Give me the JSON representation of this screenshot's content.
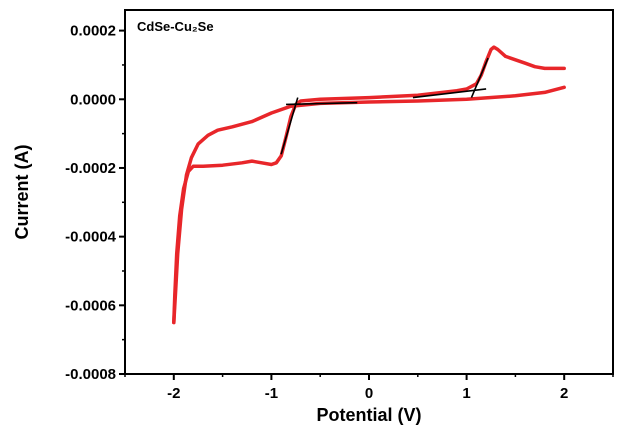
{
  "chart_data": {
    "type": "line",
    "title": "",
    "panel_label": "CdSe-Cu₂Se",
    "xlabel": "Potential (V)",
    "ylabel": "Current (A)",
    "xlim": [
      -2.5,
      2.5
    ],
    "ylim": [
      -0.0008,
      0.00026
    ],
    "x_ticks": [
      -2,
      -1,
      0,
      1,
      2
    ],
    "x_tick_labels": [
      "-2",
      "-1",
      "0",
      "1",
      "2"
    ],
    "y_ticks": [
      -0.0008,
      -0.0006,
      -0.0004,
      -0.0002,
      0.0,
      0.0002
    ],
    "y_tick_labels": [
      "-0.0008",
      "-0.0006",
      "-0.0004",
      "-0.0002",
      "0.0000",
      "0.0002"
    ],
    "grid": false,
    "series": [
      {
        "color": "#e8262a",
        "points": [
          [
            -2.0,
            -0.00065
          ],
          [
            -1.99,
            -0.00057
          ],
          [
            -1.97,
            -0.00045
          ],
          [
            -1.94,
            -0.00034
          ],
          [
            -1.9,
            -0.00026
          ],
          [
            -1.85,
            -0.00021
          ],
          [
            -1.8,
            -0.000195
          ],
          [
            -1.7,
            -0.000195
          ],
          [
            -1.5,
            -0.000192
          ],
          [
            -1.3,
            -0.000185
          ],
          [
            -1.2,
            -0.00018
          ],
          [
            -1.1,
            -0.000185
          ],
          [
            -1.0,
            -0.00019
          ],
          [
            -0.95,
            -0.000185
          ],
          [
            -0.9,
            -0.000165
          ],
          [
            -0.85,
            -0.00011
          ],
          [
            -0.8,
            -5e-05
          ],
          [
            -0.75,
            -1.5e-05
          ],
          [
            -0.7,
            -5e-06
          ],
          [
            -0.5,
            0.0
          ],
          [
            0.0,
            5e-06
          ],
          [
            0.5,
            1.2e-05
          ],
          [
            0.9,
            2.5e-05
          ],
          [
            1.0,
            3e-05
          ],
          [
            1.1,
            4.5e-05
          ],
          [
            1.15,
            7e-05
          ],
          [
            1.2,
            0.00011
          ],
          [
            1.25,
            0.000145
          ],
          [
            1.28,
            0.000152
          ],
          [
            1.32,
            0.000145
          ],
          [
            1.4,
            0.000125
          ],
          [
            1.5,
            0.000115
          ],
          [
            1.6,
            0.000105
          ],
          [
            1.7,
            9.5e-05
          ],
          [
            1.8,
            9e-05
          ],
          [
            1.9,
            9e-05
          ],
          [
            2.0,
            9e-05
          ]
        ]
      },
      {
        "color": "#e8262a",
        "points": [
          [
            2.0,
            3.5e-05
          ],
          [
            1.8,
            2e-05
          ],
          [
            1.5,
            1e-05
          ],
          [
            1.0,
            0.0
          ],
          [
            0.5,
            -5e-06
          ],
          [
            0.0,
            -8e-06
          ],
          [
            -0.5,
            -1.2e-05
          ],
          [
            -0.8,
            -2e-05
          ],
          [
            -1.0,
            -4e-05
          ],
          [
            -1.2,
            -6.5e-05
          ],
          [
            -1.4,
            -8e-05
          ],
          [
            -1.55,
            -9e-05
          ],
          [
            -1.65,
            -0.000105
          ],
          [
            -1.75,
            -0.00013
          ],
          [
            -1.82,
            -0.00017
          ],
          [
            -1.87,
            -0.00022
          ],
          [
            -1.92,
            -0.00032
          ],
          [
            -1.96,
            -0.00045
          ],
          [
            -1.98,
            -0.00055
          ],
          [
            -2.0,
            -0.00065
          ]
        ]
      }
    ],
    "annotations": [
      {
        "type": "line",
        "color": "#000000",
        "points": [
          [
            -0.85,
            -1.5e-05
          ],
          [
            -0.12,
            -1e-05
          ]
        ]
      },
      {
        "type": "line",
        "color": "#000000",
        "points": [
          [
            -0.9,
            -0.00016
          ],
          [
            -0.73,
            5e-06
          ]
        ]
      },
      {
        "type": "line",
        "color": "#000000",
        "points": [
          [
            0.45,
            5e-06
          ],
          [
            1.2,
            3e-05
          ]
        ]
      },
      {
        "type": "line",
        "color": "#000000",
        "points": [
          [
            1.05,
            5e-06
          ],
          [
            1.22,
            0.00012
          ]
        ]
      }
    ]
  }
}
